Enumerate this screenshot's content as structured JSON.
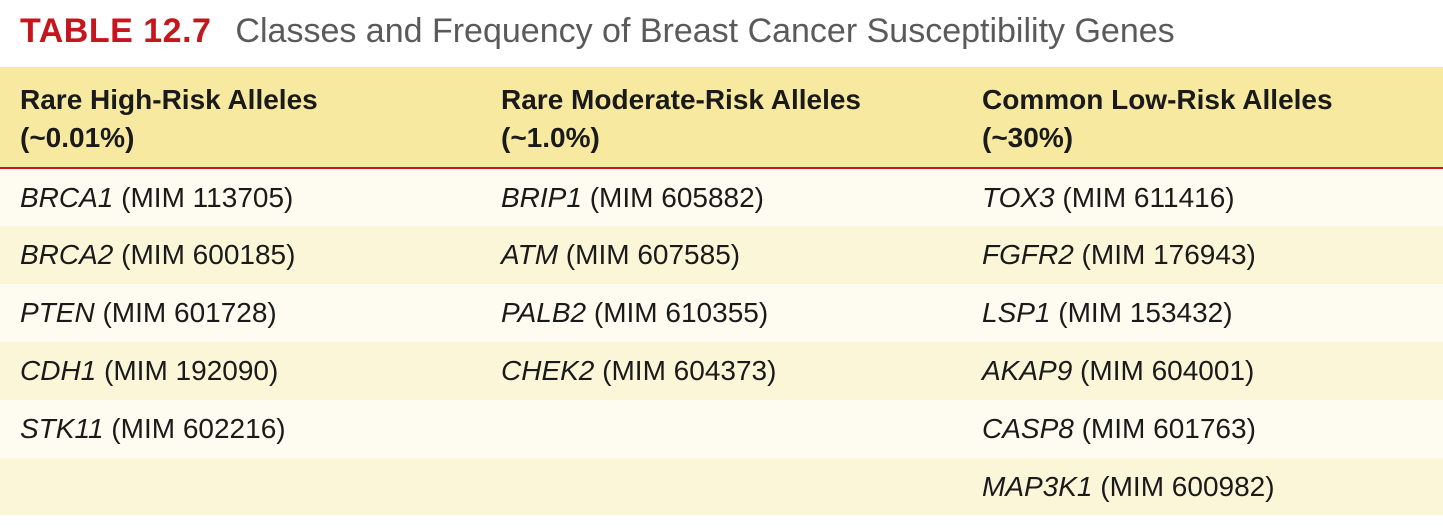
{
  "title": {
    "label": "TABLE 12.7",
    "text": "Classes and Frequency of Breast Cancer Susceptibility Genes",
    "label_color": "#c4161c",
    "title_color": "#5a5a5a",
    "label_fontsize": 34,
    "title_fontsize": 34
  },
  "table": {
    "type": "table",
    "header_bg": "#f7e9a0",
    "row_bg_even": "#fcf6d9",
    "row_bg_odd": "#fefcf0",
    "header_border_color": "#c4161c",
    "text_color": "#1a1a1a",
    "fontsize": 28,
    "columns": [
      {
        "title_line1": "Rare High-Risk Alleles",
        "title_line2": "(~0.01%)"
      },
      {
        "title_line1": "Rare Moderate-Risk Alleles",
        "title_line2": "(~1.0%)"
      },
      {
        "title_line1": "Common Low-Risk Alleles",
        "title_line2": "(~30%)"
      }
    ],
    "rows": [
      [
        {
          "gene": "BRCA1",
          "mim": "(MIM 113705)"
        },
        {
          "gene": "BRIP1",
          "mim": "(MIM 605882)"
        },
        {
          "gene": "TOX3",
          "mim": "(MIM 611416)"
        }
      ],
      [
        {
          "gene": "BRCA2",
          "mim": "(MIM 600185)"
        },
        {
          "gene": "ATM",
          "mim": "(MIM 607585)"
        },
        {
          "gene": "FGFR2",
          "mim": "(MIM 176943)"
        }
      ],
      [
        {
          "gene": "PTEN",
          "mim": "(MIM 601728)"
        },
        {
          "gene": "PALB2",
          "mim": "(MIM 610355)"
        },
        {
          "gene": "LSP1",
          "mim": "(MIM 153432)"
        }
      ],
      [
        {
          "gene": "CDH1",
          "mim": "(MIM 192090)"
        },
        {
          "gene": "CHEK2",
          "mim": "(MIM 604373)"
        },
        {
          "gene": "AKAP9",
          "mim": "(MIM 604001)"
        }
      ],
      [
        {
          "gene": "STK11",
          "mim": "(MIM 602216)"
        },
        null,
        {
          "gene": "CASP8",
          "mim": "(MIM 601763)"
        }
      ],
      [
        null,
        null,
        {
          "gene": "MAP3K1",
          "mim": "(MIM 600982)"
        }
      ]
    ]
  }
}
